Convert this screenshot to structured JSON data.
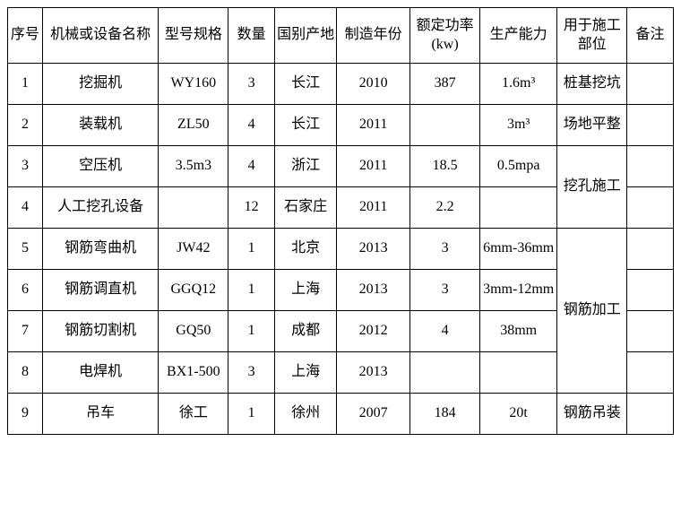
{
  "table": {
    "columns": [
      {
        "key": "seq",
        "label": "序号"
      },
      {
        "key": "name",
        "label": "机械或设备名称"
      },
      {
        "key": "model",
        "label": "型号规格"
      },
      {
        "key": "qty",
        "label": "数量"
      },
      {
        "key": "origin",
        "label": "国别产地"
      },
      {
        "key": "year",
        "label": "制造年份"
      },
      {
        "key": "power",
        "label": "额定功率(kw)"
      },
      {
        "key": "capacity",
        "label": "生产能力"
      },
      {
        "key": "usage",
        "label": "用于施工部位"
      },
      {
        "key": "remark",
        "label": "备注"
      }
    ],
    "rows": [
      {
        "seq": "1",
        "name": "挖掘机",
        "model": "WY160",
        "qty": "3",
        "origin": "长江",
        "year": "2010",
        "power": "387",
        "capacity": "1.6m³",
        "usage": "桩基挖坑",
        "remark": ""
      },
      {
        "seq": "2",
        "name": "装载机",
        "model": "ZL50",
        "qty": "4",
        "origin": "长江",
        "year": "2011",
        "power": "",
        "capacity": "3m³",
        "usage": "场地平整",
        "remark": ""
      },
      {
        "seq": "3",
        "name": "空压机",
        "model": "3.5m3",
        "qty": "4",
        "origin": "浙江",
        "year": "2011",
        "power": "18.5",
        "capacity": "0.5mpa",
        "usage": "挖孔施工",
        "remark": ""
      },
      {
        "seq": "4",
        "name": "人工挖孔设备",
        "model": "",
        "qty": "12",
        "origin": "石家庄",
        "year": "2011",
        "power": "2.2",
        "capacity": "",
        "usage": "",
        "remark": ""
      },
      {
        "seq": "5",
        "name": "钢筋弯曲机",
        "model": "JW42",
        "qty": "1",
        "origin": "北京",
        "year": "2013",
        "power": "3",
        "capacity": "6mm-36mm",
        "usage": "钢筋加工",
        "remark": ""
      },
      {
        "seq": "6",
        "name": "钢筋调直机",
        "model": "GGQ12",
        "qty": "1",
        "origin": "上海",
        "year": "2013",
        "power": "3",
        "capacity": "3mm-12mm",
        "usage": "",
        "remark": ""
      },
      {
        "seq": "7",
        "name": "钢筋切割机",
        "model": "GQ50",
        "qty": "1",
        "origin": "成都",
        "year": "2012",
        "power": "4",
        "capacity": "38mm",
        "usage": "",
        "remark": ""
      },
      {
        "seq": "8",
        "name": "电焊机",
        "model": "BX1-500",
        "qty": "3",
        "origin": "上海",
        "year": "2013",
        "power": "",
        "capacity": "",
        "usage": "",
        "remark": ""
      },
      {
        "seq": "9",
        "name": "吊车",
        "model": "徐工",
        "qty": "1",
        "origin": "徐州",
        "year": "2007",
        "power": "184",
        "capacity": "20t",
        "usage": "钢筋吊装",
        "remark": ""
      }
    ],
    "merged_usage_34": "挖孔施工",
    "merged_usage_5678": "钢筋加工",
    "styling": {
      "border_color": "#000000",
      "text_color": "#000000",
      "background_color": "#ffffff",
      "font_family": "SimSun",
      "font_size": 16,
      "header_row_height": 62,
      "body_row_height": 46
    }
  }
}
